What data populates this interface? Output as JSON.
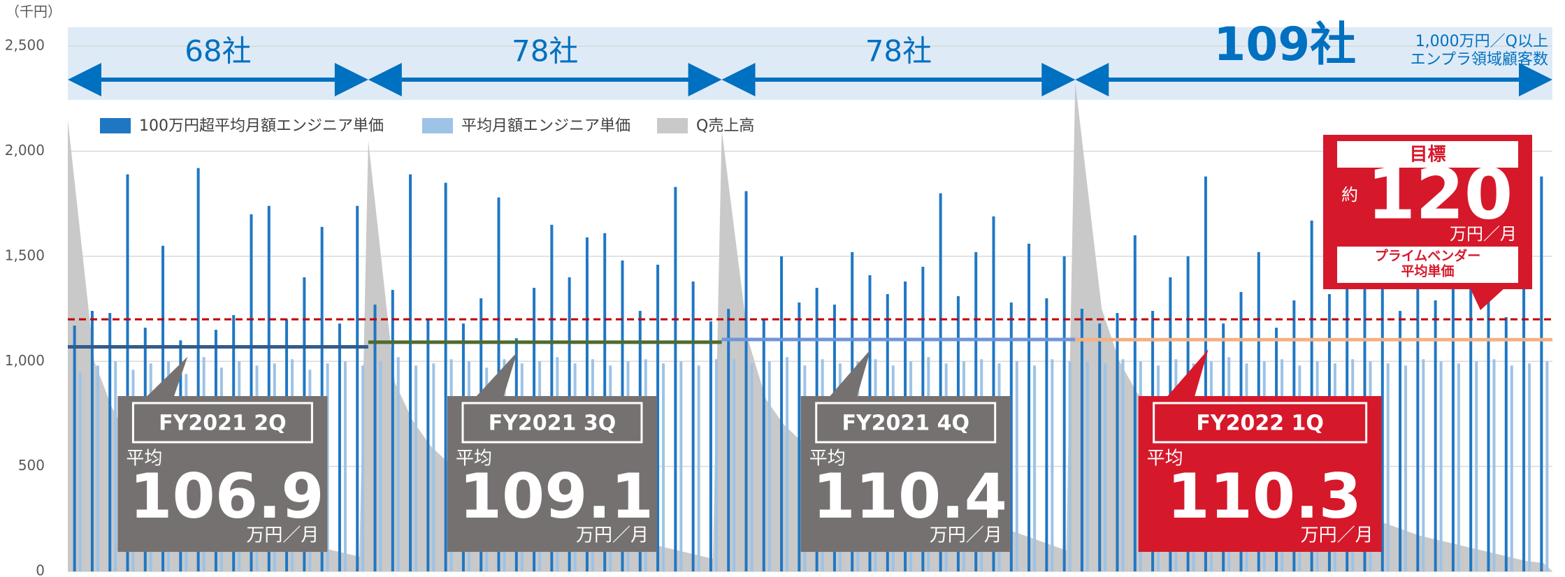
{
  "chart_data": {
    "type": "bar",
    "y_unit": "（千円）",
    "ylim": [
      0,
      2700
    ],
    "yticks": [
      0,
      500,
      {
        "value": 1000,
        "label": "1,000"
      },
      {
        "value": 1500,
        "label": "1,500"
      },
      {
        "value": 2000,
        "label": "2,000"
      },
      {
        "value": 2500,
        "label": "2,500"
      }
    ],
    "grid": true,
    "legend": [
      {
        "name": "100万円超平均月額エンジニア単価",
        "color": "#1f77c4"
      },
      {
        "name": "平均月額エンジニア単価",
        "color": "#9dc3e6"
      },
      {
        "name": "Q売上高",
        "color": "#c9c9c9"
      }
    ],
    "avg_prefix": "平均",
    "avg_unit": "万円／月",
    "count_note": [
      "1,000万円／Q以上",
      "エンプラ領域顧客数"
    ],
    "segments": [
      {
        "count": "68社",
        "period": "FY2021 2Q",
        "avg": 1069,
        "avg_label": "106.9",
        "avg_color": "#335c8a",
        "box_color": "#767171",
        "dark": [
          1170,
          1240,
          1230,
          1890,
          1160,
          1550,
          1100,
          1920,
          1150,
          1220,
          1700,
          1740,
          1200,
          1400,
          1640,
          1180,
          1740
        ],
        "light": [
          950,
          980,
          1000,
          960,
          990,
          1000,
          940,
          1020,
          970,
          1000,
          980,
          990,
          1010,
          960,
          990,
          1000,
          980
        ],
        "sales": [
          2150,
          1000,
          780,
          620,
          520,
          450,
          400,
          350,
          300,
          260,
          220,
          190,
          160,
          130,
          110,
          90,
          70
        ]
      },
      {
        "count": "78社",
        "period": "FY2021 3Q",
        "avg": 1091,
        "avg_label": "109.1",
        "avg_color": "#4e6b2e",
        "box_color": "#767171",
        "dark": [
          1270,
          1340,
          1890,
          1200,
          1850,
          1180,
          1300,
          1780,
          1110,
          1350,
          1650,
          1400,
          1590,
          1610,
          1480,
          1240,
          1460,
          1830,
          1380,
          1190
        ],
        "light": [
          1000,
          1020,
          980,
          990,
          1010,
          1000,
          970,
          1010,
          990,
          1000,
          1020,
          990,
          1010,
          980,
          1000,
          1010,
          990,
          1000,
          980,
          1010
        ],
        "sales": [
          2050,
          900,
          720,
          600,
          520,
          460,
          410,
          360,
          320,
          290,
          260,
          230,
          200,
          180,
          160,
          140,
          120,
          100,
          80,
          60
        ]
      },
      {
        "count": "78社",
        "period": "FY2021 4Q",
        "avg": 1104,
        "avg_label": "110.4",
        "avg_color": "#6f96d8",
        "box_color": "#767171",
        "dark": [
          1250,
          1810,
          1200,
          1500,
          1280,
          1350,
          1270,
          1520,
          1410,
          1320,
          1380,
          1450,
          1800,
          1310,
          1520,
          1690,
          1280,
          1560,
          1300,
          1500
        ],
        "light": [
          1010,
          990,
          1000,
          1020,
          980,
          1010,
          990,
          1000,
          1010,
          980,
          1000,
          1020,
          990,
          1000,
          1010,
          990,
          1000,
          980,
          1010,
          1000
        ],
        "sales": [
          2100,
          1100,
          820,
          700,
          620,
          560,
          510,
          470,
          430,
          400,
          370,
          340,
          310,
          280,
          250,
          220,
          190,
          160,
          130,
          100
        ]
      },
      {
        "count": "109社",
        "period": "FY2022 1Q",
        "avg": 1103,
        "avg_label": "110.3",
        "avg_color": "#f4b183",
        "box_color": "#d6182b",
        "dark": [
          1250,
          1180,
          1230,
          1600,
          1240,
          1400,
          1500,
          1880,
          1180,
          1330,
          1520,
          1160,
          1290,
          1670,
          1320,
          1380,
          1450,
          1780,
          1240,
          1430,
          1290,
          1900,
          1560,
          1440,
          1210,
          1500,
          1880
        ],
        "light": [
          1000,
          990,
          1010,
          1000,
          980,
          1010,
          990,
          1000,
          1020,
          990,
          1000,
          1010,
          980,
          1000,
          990,
          1010,
          1000,
          990,
          980,
          1010,
          1000,
          990,
          1000,
          1010,
          980,
          990,
          1000
        ],
        "sales": [
          2330,
          1250,
          1000,
          850,
          760,
          690,
          640,
          590,
          550,
          510,
          470,
          430,
          390,
          350,
          320,
          290,
          260,
          230,
          200,
          170,
          150,
          130,
          110,
          90,
          70,
          50,
          40
        ]
      }
    ],
    "target": {
      "value": 1200,
      "label": "120",
      "title": "目標",
      "prefix": "約",
      "unit": "万円／月",
      "note": [
        "プライムベンダー",
        "平均単価"
      ],
      "color": "#d6182b"
    }
  }
}
